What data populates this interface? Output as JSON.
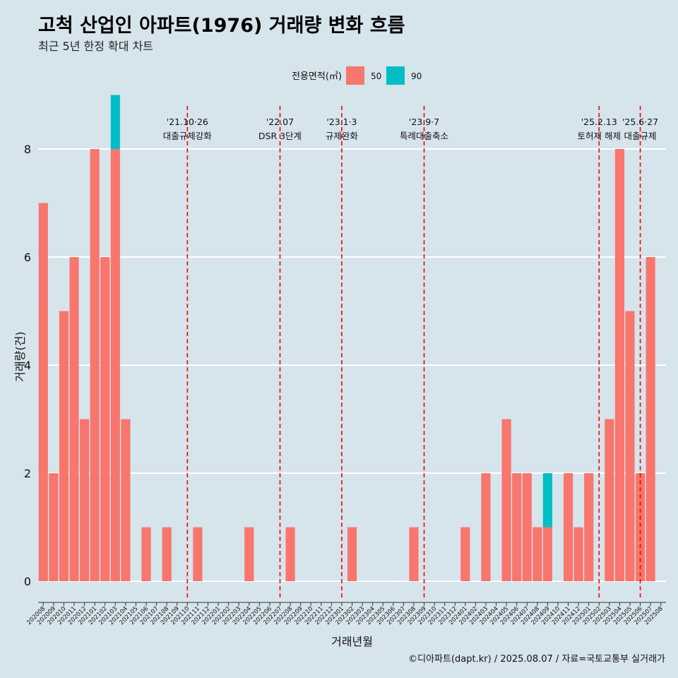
{
  "header": {
    "title": "고척 산업인 아파트(1976) 거래량 변화 흐름",
    "subtitle": "최근 5년 한정 확대 차트"
  },
  "caption": "©디아파트(dapt.kr) / 2025.08.07 / 자료=국토교통부 실거래가",
  "colors": {
    "background": "#d6e4ec",
    "s50": "#f8766d",
    "s90": "#00bfc4",
    "event_line": "#ff0000",
    "grid": "#ffffff"
  },
  "chart_data": {
    "type": "bar",
    "stacked": true,
    "xlabel": "거래년월",
    "ylabel": "거래량(건)",
    "ylim": [
      0,
      8
    ],
    "yticks": [
      0,
      2,
      4,
      6,
      8
    ],
    "grid": true,
    "legend": {
      "title": "전용면적(㎡)",
      "position": "top"
    },
    "categories": [
      "202008",
      "202009",
      "202010",
      "202011",
      "202012",
      "202101",
      "202102",
      "202103",
      "202104",
      "202105",
      "202106",
      "202107",
      "202108",
      "202109",
      "202110",
      "202111",
      "202112",
      "202201",
      "202202",
      "202203",
      "202204",
      "202205",
      "202206",
      "202207",
      "202208",
      "202209",
      "202210",
      "202211",
      "202212",
      "202301",
      "202302",
      "202303",
      "202304",
      "202305",
      "202306",
      "202307",
      "202308",
      "202309",
      "202310",
      "202311",
      "202312",
      "202401",
      "202402",
      "202403",
      "202404",
      "202405",
      "202406",
      "202407",
      "202408",
      "202409",
      "202410",
      "202411",
      "202412",
      "202501",
      "202502",
      "202503",
      "202504",
      "202505",
      "202506",
      "202507",
      "202508"
    ],
    "series": [
      {
        "name": "50",
        "values": [
          7,
          2,
          5,
          6,
          3,
          8,
          6,
          8,
          3,
          0,
          1,
          0,
          1,
          0,
          0,
          1,
          0,
          0,
          0,
          0,
          1,
          0,
          0,
          0,
          1,
          0,
          0,
          0,
          0,
          0,
          1,
          0,
          0,
          0,
          0,
          0,
          1,
          0,
          0,
          0,
          0,
          1,
          0,
          2,
          0,
          3,
          2,
          2,
          1,
          1,
          0,
          2,
          1,
          2,
          0,
          3,
          8,
          5,
          2,
          6,
          0
        ]
      },
      {
        "name": "90",
        "values": [
          0,
          0,
          0,
          0,
          0,
          0,
          0,
          1,
          0,
          0,
          0,
          0,
          0,
          0,
          0,
          0,
          0,
          0,
          0,
          0,
          0,
          0,
          0,
          0,
          0,
          0,
          0,
          0,
          0,
          0,
          0,
          0,
          0,
          0,
          0,
          0,
          0,
          0,
          0,
          0,
          0,
          0,
          0,
          0,
          0,
          0,
          0,
          0,
          0,
          1,
          0,
          0,
          0,
          0,
          0,
          0,
          0,
          0,
          0,
          0,
          0
        ]
      }
    ],
    "annotations": [
      {
        "at": 14.5,
        "date": "'21.10·26",
        "text": "대출규제강화"
      },
      {
        "at": 23.5,
        "date": "'22.07",
        "text": "DSR 3단계"
      },
      {
        "at": 29.5,
        "date": "'23.1·3",
        "text": "규제완화"
      },
      {
        "at": 37.5,
        "date": "'23.9·7",
        "text": "특례대출축소"
      },
      {
        "at": 54.5,
        "date": "'25.2.13",
        "text": "토허제 해제"
      },
      {
        "at": 58.5,
        "date": "'25.6·27",
        "text": "대출규제"
      }
    ]
  }
}
